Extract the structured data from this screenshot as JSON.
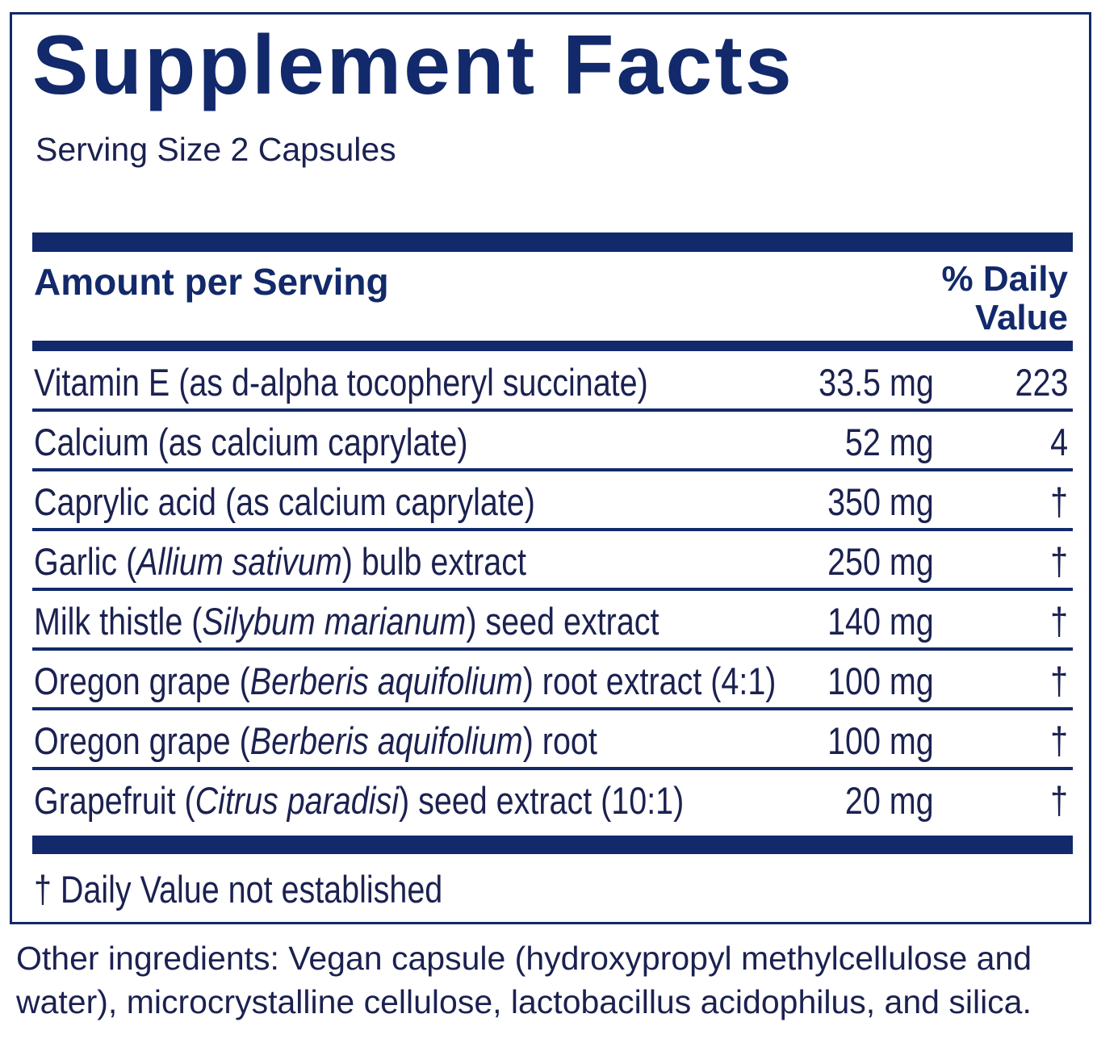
{
  "title": "Supplement Facts",
  "serving_size": "Serving Size 2 Capsules",
  "header": {
    "amount_label": "Amount per Serving",
    "dv_label_line1": "% Daily",
    "dv_label_line2": "Value"
  },
  "rows": [
    {
      "pre": "Vitamin E (as d-alpha tocopheryl succinate)",
      "italic": "",
      "post": "",
      "amount": "33.5 mg",
      "dv": "223"
    },
    {
      "pre": "Calcium (as calcium caprylate)",
      "italic": "",
      "post": "",
      "amount": "52 mg",
      "dv": "4"
    },
    {
      "pre": "Caprylic acid (as calcium caprylate)",
      "italic": "",
      "post": "",
      "amount": "350 mg",
      "dv": "†"
    },
    {
      "pre": "Garlic (",
      "italic": "Allium sativum",
      "post": ") bulb extract",
      "amount": "250 mg",
      "dv": "†"
    },
    {
      "pre": "Milk thistle (",
      "italic": "Silybum marianum",
      "post": ") seed extract",
      "amount": "140 mg",
      "dv": "†"
    },
    {
      "pre": "Oregon grape (",
      "italic": "Berberis aquifolium",
      "post": ") root extract (4:1)",
      "amount": "100 mg",
      "dv": "†"
    },
    {
      "pre": "Oregon grape (",
      "italic": "Berberis aquifolium",
      "post": ") root",
      "amount": "100 mg",
      "dv": "†"
    },
    {
      "pre": "Grapefruit (",
      "italic": "Citrus paradisi",
      "post": ") seed extract (10:1)",
      "amount": "20 mg",
      "dv": "†"
    }
  ],
  "footnote": "† Daily Value not established",
  "other_ingredients": "Other ingredients: Vegan capsule (hydroxypropyl methylcellulose and water), microcrystalline cellulose, lactobacillus acidophilus, and silica.",
  "colors": {
    "brand_navy": "#12296b",
    "text": "#1b2150"
  }
}
